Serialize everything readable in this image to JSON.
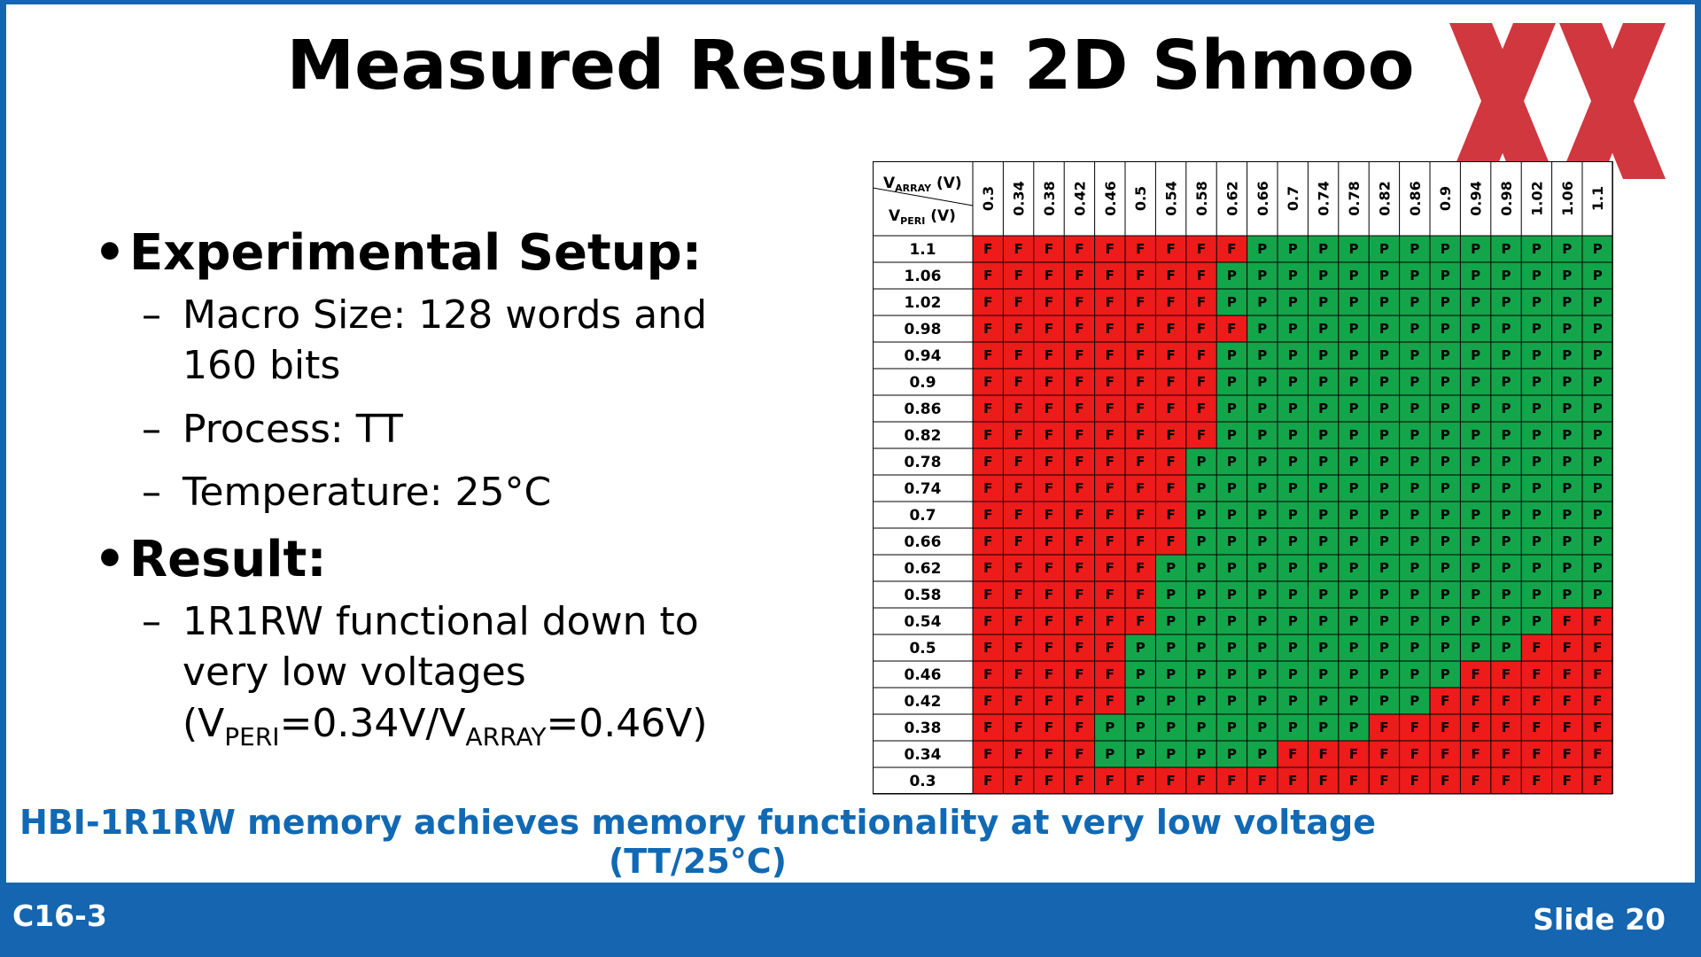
{
  "title": "Measured Results: 2D Shmoo",
  "bullets": {
    "setup_heading": "Experimental Setup:",
    "macro_size": "Macro Size: 128 words and",
    "macro_size_cont": "160 bits",
    "process": "Process: TT",
    "temperature": "Temperature: 25°C",
    "result_heading": "Result:",
    "result_line1": "1R1RW functional down to",
    "result_line2": "very low voltages",
    "result_formula": {
      "open": "(V",
      "peri_sub": "PERI",
      "peri_val": "=0.34V/V",
      "array_sub": "ARRAY",
      "array_val": "=0.46V)"
    },
    "dash": "–"
  },
  "takeaway": "HBI-1R1RW memory achieves memory functionality at very low voltage (TT/25°C)",
  "footer": {
    "session": "C16-3",
    "slide": "Slide 20"
  },
  "colors": {
    "fail": "#ee1b1b",
    "pass": "#13a54a",
    "accent": "#1565b0",
    "takeaway": "#1169b4",
    "logo": "#c8151e"
  },
  "chart_data": {
    "type": "table",
    "corner": {
      "array_label": "V",
      "array_sub": "ARRAY",
      "array_unit": "(V)",
      "peri_label": "V",
      "peri_sub": "PERI",
      "peri_unit": "(V)"
    },
    "columns": [
      "0.3",
      "0.34",
      "0.38",
      "0.42",
      "0.46",
      "0.5",
      "0.54",
      "0.58",
      "0.62",
      "0.66",
      "0.7",
      "0.74",
      "0.78",
      "0.82",
      "0.86",
      "0.9",
      "0.94",
      "0.98",
      "1.02",
      "1.06",
      "1.1"
    ],
    "rows": [
      "1.1",
      "1.06",
      "1.02",
      "0.98",
      "0.94",
      "0.9",
      "0.86",
      "0.82",
      "0.78",
      "0.74",
      "0.7",
      "0.66",
      "0.62",
      "0.58",
      "0.54",
      "0.5",
      "0.46",
      "0.42",
      "0.38",
      "0.34",
      "0.3"
    ],
    "cells": [
      "FFFFFFFFFPPPPPPPPPPPP",
      "FFFFFFFFPPPPPPPPPPPPP",
      "FFFFFFFFPPPPPPPPPPPPP",
      "FFFFFFFFFPPPPPPPPPPPP",
      "FFFFFFFFPPPPPPPPPPPPP",
      "FFFFFFFFPPPPPPPPPPPPP",
      "FFFFFFFFPPPPPPPPPPPPP",
      "FFFFFFFFPPPPPPPPPPPPP",
      "FFFFFFFPPPPPPPPPPPPPP",
      "FFFFFFFPPPPPPPPPPPPPP",
      "FFFFFFFPPPPPPPPPPPPPP",
      "FFFFFFFPPPPPPPPPPPPPP",
      "FFFFFFPPPPPPPPPPPPPPP",
      "FFFFFFPPPPPPPPPPPPPPP",
      "FFFFFFPPPPPPPPPPPPPFF",
      "FFFFFPPPPPPPPPPPPPFFF",
      "FFFFFPPPPPPPPPPPFFFFF",
      "FFFFFPPPPPPPPPPFFFFFF",
      "FFFFPPPPPPPPPFFFFFFFF",
      "FFFFPPPPPPFFFFFFFFFFF",
      "FFFFFFFFFFFFFFFFFFFFF"
    ]
  }
}
